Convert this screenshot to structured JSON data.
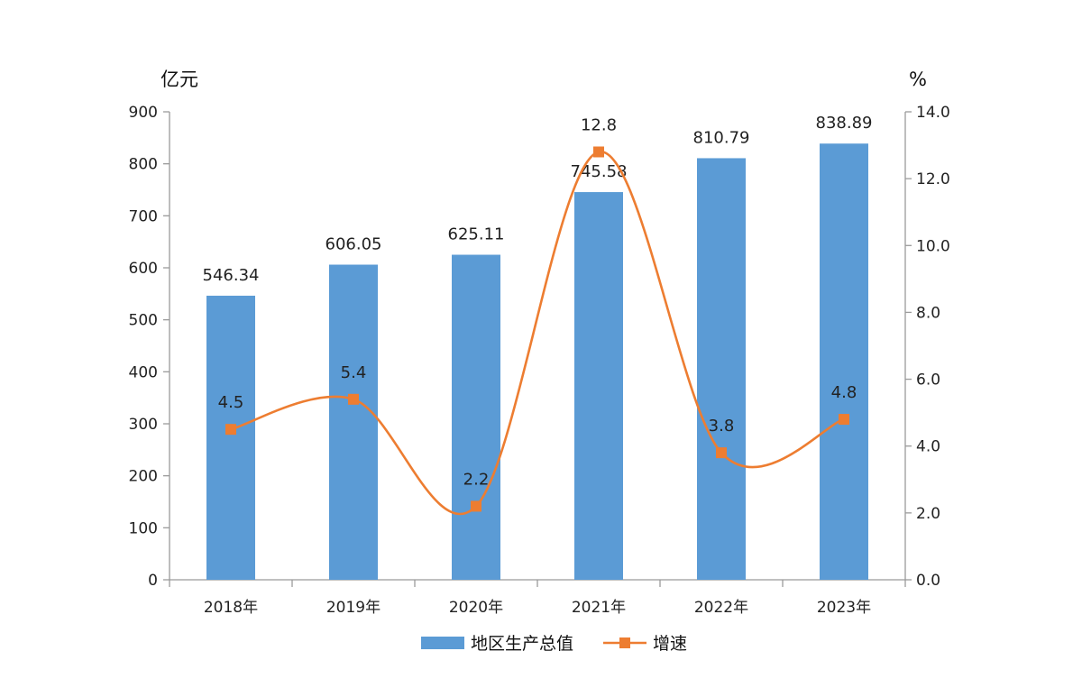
{
  "chart_data": {
    "type": "bar",
    "categories": [
      "2018年",
      "2019年",
      "2020年",
      "2021年",
      "2022年",
      "2023年"
    ],
    "series": [
      {
        "name": "地区生产总值",
        "type": "bar",
        "axis": "left",
        "values": [
          546.34,
          606.05,
          625.11,
          745.58,
          810.79,
          838.89
        ],
        "labels": [
          "546.34",
          "606.05",
          "625.11",
          "745.58",
          "810.79",
          "838.89"
        ],
        "color": "#5b9bd5"
      },
      {
        "name": "增速",
        "type": "line",
        "smooth": true,
        "axis": "right",
        "values": [
          4.5,
          5.4,
          2.2,
          12.8,
          3.8,
          4.8
        ],
        "labels": [
          "4.5",
          "5.4",
          "2.2",
          "12.8",
          "3.8",
          "4.8"
        ],
        "color": "#ed7d31"
      }
    ],
    "y_left": {
      "unit": "亿元",
      "range": [
        0,
        900
      ],
      "ticks": [
        "0",
        "100",
        "200",
        "300",
        "400",
        "500",
        "600",
        "700",
        "800",
        "900"
      ]
    },
    "y_right": {
      "unit": "%",
      "range": [
        0,
        14
      ],
      "ticks": [
        "0.0",
        "2.0",
        "4.0",
        "6.0",
        "8.0",
        "10.0",
        "12.0",
        "14.0"
      ]
    },
    "grid": false,
    "legend": "bottom-center"
  }
}
